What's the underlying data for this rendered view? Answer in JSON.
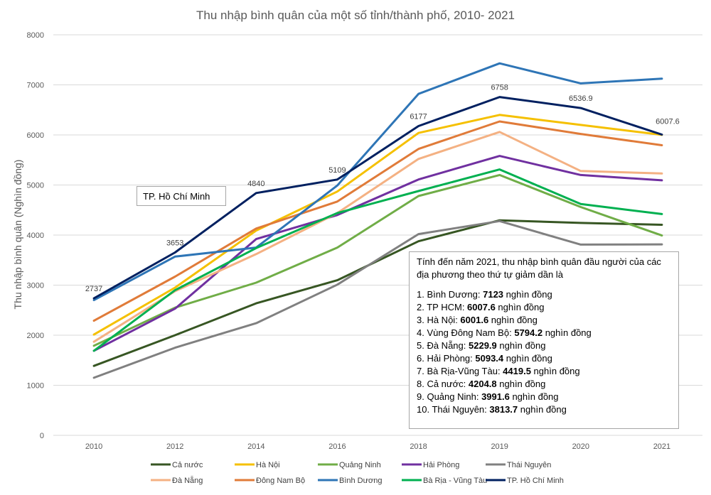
{
  "chart_data": {
    "type": "line",
    "title": "Thu nhập bình quân của một số tỉnh/thành phố, 2010- 2021",
    "ylabel": "Thu nhập bình quân (Nghìn đồng)",
    "xlabel": "",
    "categories": [
      "2010",
      "2012",
      "2014",
      "2016",
      "2018",
      "2019",
      "2020",
      "2021"
    ],
    "ylim": [
      0,
      8000
    ],
    "yticks": [
      "0",
      "1000",
      "2000",
      "3000",
      "4000",
      "5000",
      "6000",
      "7000",
      "8000"
    ],
    "grid": true,
    "legend_position": "bottom",
    "series": [
      {
        "name": "Cả nước",
        "color": "#375623",
        "values": [
          1387,
          2000,
          2637,
          3098,
          3876,
          4295,
          4242,
          4205
        ]
      },
      {
        "name": "Hà Nội",
        "color": "#f5c000",
        "values": [
          2013,
          2950,
          4090,
          4870,
          6040,
          6400,
          6200,
          6002
        ]
      },
      {
        "name": "Quảng Ninh",
        "color": "#70ad47",
        "values": [
          1790,
          2550,
          3050,
          3750,
          4780,
          5200,
          4560,
          3992
        ]
      },
      {
        "name": "Hải Phòng",
        "color": "#7030a0",
        "values": [
          1690,
          2530,
          3920,
          4400,
          5110,
          5580,
          5200,
          5093
        ]
      },
      {
        "name": "Thái  Nguyên",
        "color": "#808080",
        "values": [
          1150,
          1750,
          2240,
          3010,
          4020,
          4280,
          3810,
          3814
        ]
      },
      {
        "name": "Đà Nẵng",
        "color": "#f4b183",
        "values": [
          1870,
          2880,
          3620,
          4440,
          5520,
          6060,
          5280,
          5230
        ]
      },
      {
        "name": "Đông Nam Bộ",
        "color": "#e07b39",
        "values": [
          2290,
          3170,
          4130,
          4670,
          5720,
          6270,
          6020,
          5794
        ]
      },
      {
        "name": "Bình  Dương",
        "color": "#2e75b6",
        "values": [
          2700,
          3570,
          3750,
          4990,
          6820,
          7430,
          7030,
          7123
        ]
      },
      {
        "name": "Bà Rịa - Vũng Tàu",
        "color": "#00b050",
        "values": [
          1690,
          2900,
          3740,
          4440,
          4880,
          5310,
          4620,
          4420
        ]
      },
      {
        "name": "TP. Hồ Chí Minh",
        "color": "#002060",
        "values": [
          2737,
          3653,
          4840,
          5109,
          6177,
          6758,
          6536.9,
          6007.6
        ]
      }
    ],
    "data_labels": {
      "series": "TP. Hồ Chí Minh",
      "labels": [
        "2737",
        "3653",
        "4840",
        "5109",
        "6177",
        "6758",
        "6536.9",
        "6007.6"
      ]
    },
    "annotations": {
      "city_label": "TP. Hồ Chí Minh",
      "summary_intro": "Tính đến năm 2021, thu nhập bình quân đầu người của các địa phương theo thứ tự giảm dần là",
      "ranking": [
        {
          "prefix": "1. Bình Dương: ",
          "value": "7123",
          "suffix": " nghìn đồng"
        },
        {
          "prefix": "2. TP HCM: ",
          "value": "6007.6",
          "suffix": " nghìn đồng"
        },
        {
          "prefix": "3. Hà Nội: ",
          "value": "6001.6",
          "suffix": " nghìn đồng"
        },
        {
          "prefix": "4. Vùng Đông Nam Bộ: ",
          "value": "5794.2",
          "suffix": " nghìn đồng"
        },
        {
          "prefix": "5. Đà Nẵng: ",
          "value": "5229.9",
          "suffix": " nghìn đồng"
        },
        {
          "prefix": "6. Hải Phòng: ",
          "value": "5093.4",
          "suffix": " nghìn đồng"
        },
        {
          "prefix": "7. Bà Rịa-Vũng Tàu: ",
          "value": "4419.5",
          "suffix": " nghìn đồng"
        },
        {
          "prefix": "8. Cả nước: ",
          "value": "4204.8",
          "suffix": " nghìn đồng"
        },
        {
          "prefix": "9. Quảng Ninh: ",
          "value": "3991.6",
          "suffix": " nghìn đồng"
        },
        {
          "prefix": "10. Thái Nguyên: ",
          "value": "3813.7",
          "suffix": " nghìn đồng"
        }
      ]
    }
  }
}
